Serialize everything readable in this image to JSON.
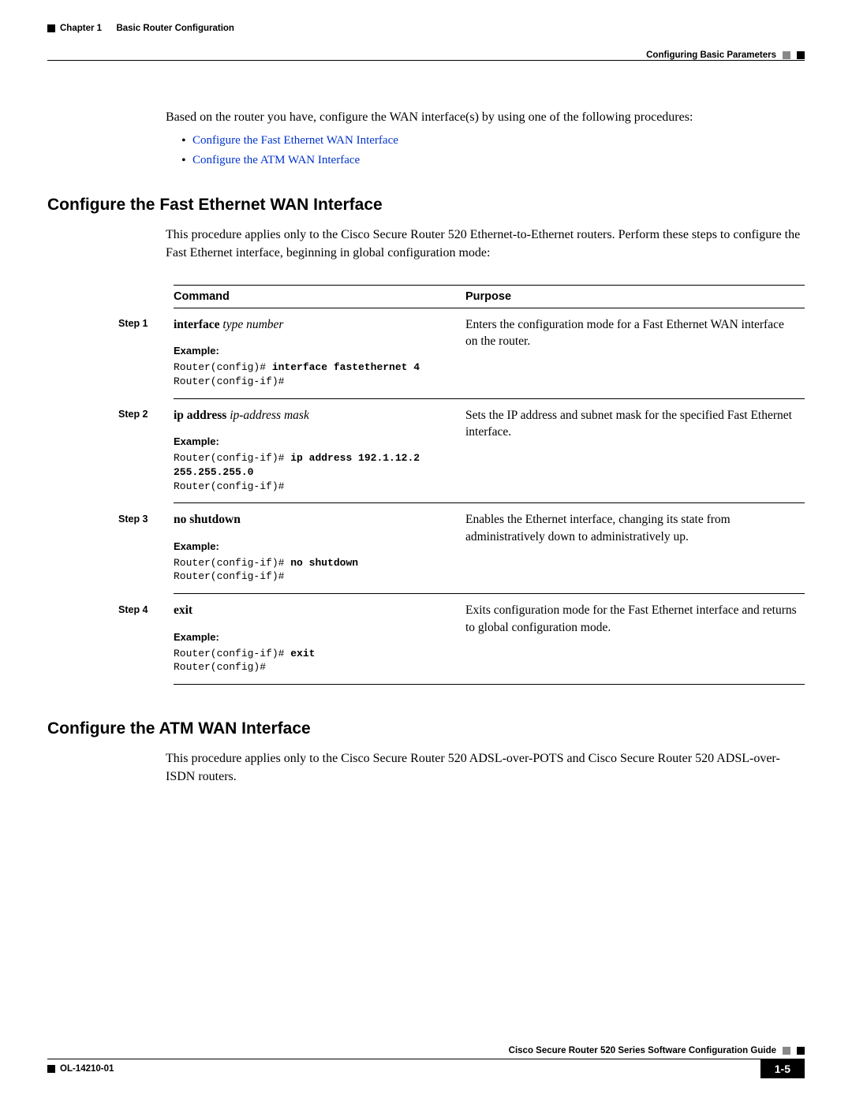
{
  "header": {
    "chapter_label": "Chapter 1",
    "chapter_title": "Basic Router Configuration",
    "section_title": "Configuring Basic Parameters"
  },
  "intro": {
    "text": "Based on the router you have, configure the WAN interface(s) by using one of the following procedures:",
    "links": [
      "Configure the Fast Ethernet WAN Interface",
      "Configure the ATM WAN Interface"
    ]
  },
  "section1": {
    "heading": "Configure the Fast Ethernet WAN Interface",
    "desc": "This procedure applies only to the Cisco Secure Router 520 Ethernet-to-Ethernet routers. Perform these steps to configure the Fast Ethernet interface, beginning in global configuration mode:",
    "table": {
      "headers": {
        "command": "Command",
        "purpose": "Purpose"
      },
      "example_label": "Example:",
      "rows": [
        {
          "step": "Step 1",
          "cmd_bold": "interface",
          "cmd_italic": "type number",
          "code": "Router(config)# <b>interface fastethernet 4</b>\nRouter(config-if)#",
          "purpose": "Enters the configuration mode for a Fast Ethernet WAN interface on the router."
        },
        {
          "step": "Step 2",
          "cmd_bold": "ip address",
          "cmd_italic": "ip-address mask",
          "code": "Router(config-if)# <b>ip address 192.1.12.2 255.255.255.0</b>\nRouter(config-if)#",
          "purpose": "Sets the IP address and subnet mask for the specified Fast Ethernet interface."
        },
        {
          "step": "Step 3",
          "cmd_bold": "no shutdown",
          "cmd_italic": "",
          "code": "Router(config-if)# <b>no shutdown</b>\nRouter(config-if)#",
          "purpose": "Enables the Ethernet interface, changing its state from administratively down to administratively up."
        },
        {
          "step": "Step 4",
          "cmd_bold": "exit",
          "cmd_italic": "",
          "code": "Router(config-if)# <b>exit</b>\nRouter(config)#",
          "purpose": "Exits configuration mode for the Fast Ethernet interface and returns to global configuration mode."
        }
      ]
    }
  },
  "section2": {
    "heading": "Configure the ATM WAN Interface",
    "desc": "This procedure applies only to the Cisco Secure Router 520 ADSL-over-POTS and Cisco Secure Router 520 ADSL-over-ISDN routers."
  },
  "footer": {
    "guide_title": "Cisco Secure Router 520 Series Software Configuration Guide",
    "doc_id": "OL-14210-01",
    "page_num": "1-5"
  }
}
